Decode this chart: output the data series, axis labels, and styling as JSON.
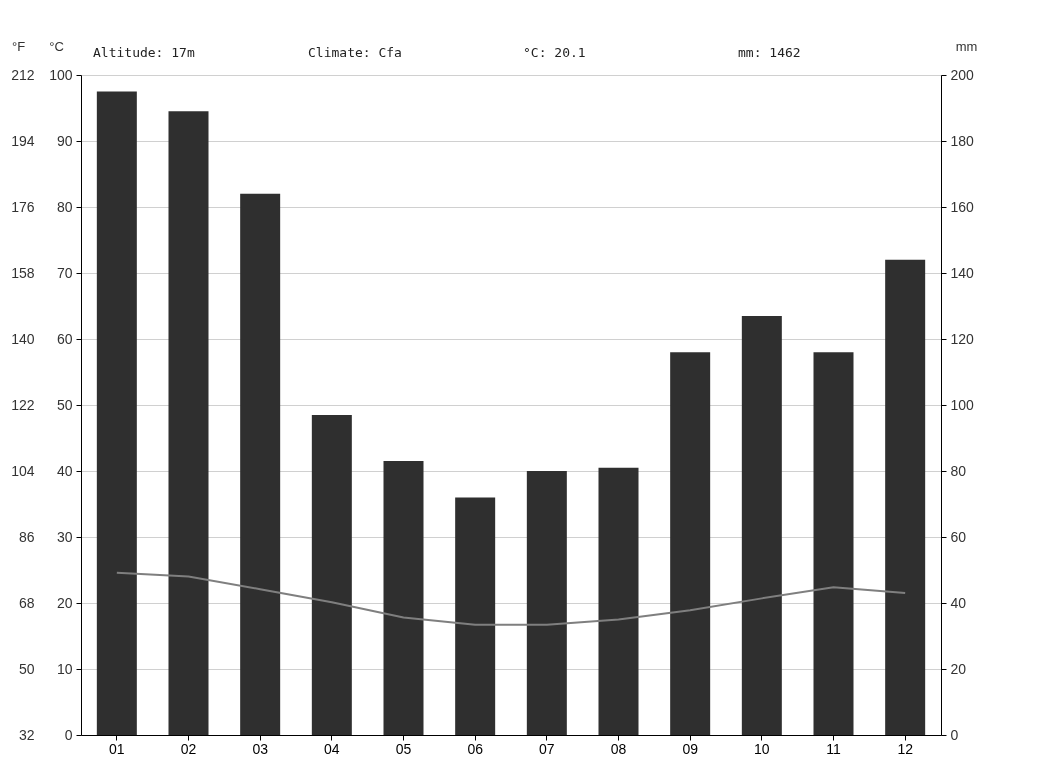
{
  "chart_data": {
    "type": "bar",
    "categories": [
      "01",
      "02",
      "03",
      "04",
      "05",
      "06",
      "07",
      "08",
      "09",
      "10",
      "11",
      "12"
    ],
    "series": [
      {
        "axis": "y2",
        "color": "#2f2f2f",
        "values": [
          195,
          189,
          164,
          97,
          83,
          72,
          80,
          81,
          116,
          127,
          116,
          144
        ]
      },
      {
        "type": "line",
        "color": "#7f7f7f",
        "values": [
          24.6,
          24.0,
          22.1,
          20.1,
          17.8,
          16.7,
          16.7,
          17.5,
          18.9,
          20.7,
          22.4,
          21.5
        ]
      }
    ],
    "ylabel": "°C",
    "ylim": [
      0,
      100
    ],
    "yticks": [
      0,
      10,
      20,
      30,
      40,
      50,
      60,
      70,
      80,
      90,
      100
    ],
    "y2label": "mm",
    "y2lim": [
      0,
      200
    ],
    "y2ticks": [
      0,
      20,
      40,
      60,
      80,
      100,
      120,
      140,
      160,
      180,
      200
    ],
    "y3label": "°F",
    "y3lim": [
      32,
      212
    ],
    "y3ticks": [
      32,
      50,
      68,
      86,
      104,
      122,
      140,
      158,
      176,
      194,
      212
    ],
    "annotations": [
      "Altitude: 17m",
      "Climate: Cfa",
      "°C: 20.1",
      "mm: 1462"
    ],
    "grid": "y",
    "line_style": "solid",
    "marker": "none"
  }
}
